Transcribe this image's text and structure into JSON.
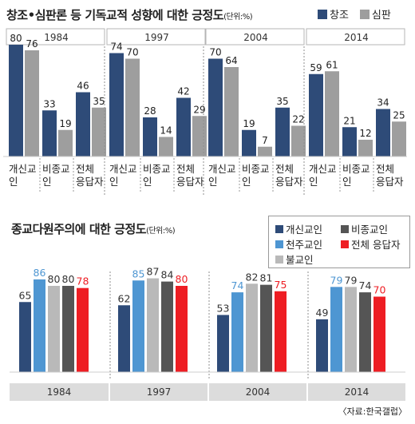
{
  "colors": {
    "dark_blue": "#2e4b78",
    "gray": "#9e9e9e",
    "light_blue": "#4e96d2",
    "light_gray": "#b9b9b9",
    "dark_gray": "#555555",
    "red": "#ee1d23",
    "year_band": "#dcdcdc"
  },
  "chart_data": [
    {
      "type": "bar",
      "title": "창조•심판론 등 기독교적 성향에 대한 긍정도",
      "unit": "(단위:%)",
      "years": [
        "1984",
        "1997",
        "2004",
        "2014"
      ],
      "categories": [
        "개신교인",
        "비종교인",
        "전체 응답자"
      ],
      "category_labels": [
        "개신교\n인",
        "비종교\n인",
        "전체\n응답자"
      ],
      "legend_position": "top-right",
      "series": [
        {
          "name": "창조",
          "color": "#2e4b78",
          "values": [
            [
              80,
              33,
              46
            ],
            [
              74,
              28,
              42
            ],
            [
              70,
              19,
              35
            ],
            [
              59,
              21,
              34
            ]
          ]
        },
        {
          "name": "심판",
          "color": "#9e9e9e",
          "values": [
            [
              76,
              19,
              35
            ],
            [
              70,
              14,
              29
            ],
            [
              64,
              7,
              22
            ],
            [
              61,
              12,
              25
            ]
          ]
        }
      ],
      "ylim": [
        0,
        100
      ]
    },
    {
      "type": "bar",
      "title": "종교다원주의에 대한 긍정도",
      "unit": "(단위:%)",
      "years": [
        "1984",
        "1997",
        "2004",
        "2014"
      ],
      "legend_position": "top-right",
      "series": [
        {
          "name": "개신교인",
          "color": "#2e4b78",
          "values": [
            65,
            62,
            53,
            49
          ]
        },
        {
          "name": "천주교인",
          "color": "#4e96d2",
          "values": [
            86,
            85,
            74,
            79
          ]
        },
        {
          "name": "불교인",
          "color": "#b9b9b9",
          "values": [
            80,
            87,
            82,
            79
          ]
        },
        {
          "name": "비종교인",
          "color": "#555555",
          "values": [
            80,
            84,
            81,
            74
          ]
        },
        {
          "name": "전체 응답자",
          "color": "#ee1d23",
          "values": [
            78,
            80,
            75,
            70
          ]
        }
      ],
      "ylim": [
        0,
        100
      ]
    }
  ],
  "source": "〈자료:한국갤럽〉"
}
